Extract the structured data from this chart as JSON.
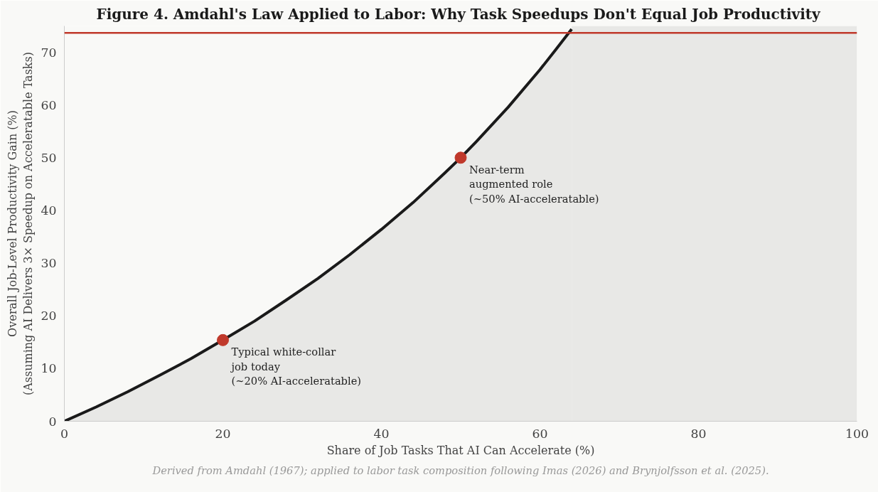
{
  "chart_data": {
    "type": "area",
    "title": "Figure 4.  Amdahl's Law Applied to Labor: Why Task Speedups Don't Equal Job Productivity",
    "xlabel": "Share of Job Tasks That AI Can Accelerate (%)",
    "ylabel": "Overall Job-Level Productivity Gain (%)\n(Assuming AI Delivers 3× Speedup on Acceleratable Tasks)",
    "xlim": [
      0,
      100
    ],
    "ylim": [
      0,
      75
    ],
    "xticks": [
      0,
      20,
      40,
      60,
      80,
      100
    ],
    "yticks": [
      0,
      10,
      20,
      30,
      40,
      50,
      60,
      70
    ],
    "grid": false,
    "series": [
      {
        "color": "#1a1a1a",
        "x": [
          0,
          4,
          8,
          12,
          16,
          20,
          24,
          28,
          32,
          36,
          40,
          44,
          48,
          50,
          52,
          56,
          60,
          62,
          64
        ],
        "values": [
          0,
          2.7,
          5.6,
          8.7,
          11.9,
          15.4,
          19.0,
          23.0,
          27.1,
          31.6,
          36.4,
          41.5,
          47.1,
          50,
          53.1,
          59.6,
          66.7,
          70.5,
          74.4
        ]
      },
      {
        "type": "scatter",
        "color": "#c0392b",
        "x": [
          20,
          50
        ],
        "values": [
          15.4,
          50
        ]
      }
    ],
    "bands": [
      {
        "axis": "x",
        "from": 64,
        "to": 100,
        "color": "#e8e8e6"
      }
    ],
    "ref_lines": [
      {
        "axis": "y",
        "value": 73.7,
        "color": "#c0392b"
      }
    ],
    "annotations": [
      {
        "text": "Typical white-collar\njob today\n(~20% AI-acceleratable)",
        "x": 20,
        "y": 15.4
      },
      {
        "text": "Near-term\naugmented role\n(~50% AI-acceleratable)",
        "x": 50,
        "y": 50
      },
      "Derived from Amdahl (1967); applied to labor task composition following Imas (2026) and Brynjolfsson et al. (2025)."
    ]
  }
}
